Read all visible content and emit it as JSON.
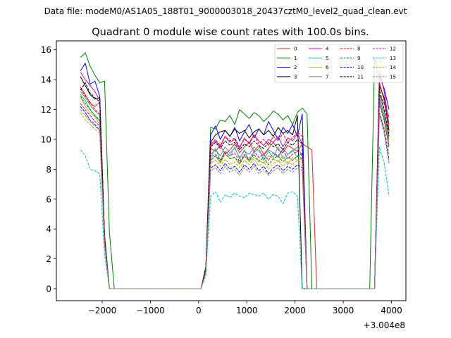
{
  "figure": {
    "suptitle": "Data file: modeM0/AS1A05_188T01_9000003018_20437cztM0_level2_quad_clean.evt"
  },
  "chart_data": {
    "type": "line",
    "title": "Quadrant 0 module wise count rates with 100.0s bins.",
    "xlabel": "",
    "ylabel": "",
    "x_offset_label": "+3.004e8",
    "xlim": [
      -2950,
      4300
    ],
    "ylim": [
      -0.8,
      16.6
    ],
    "xticks": [
      -2000,
      -1000,
      0,
      1000,
      2000,
      3000,
      4000
    ],
    "xtick_labels": [
      "−2000",
      "−1000",
      "0",
      "1000",
      "2000",
      "3000",
      "4000"
    ],
    "yticks": [
      0,
      2,
      4,
      6,
      8,
      10,
      12,
      14,
      16
    ],
    "ytick_labels": [
      "0",
      "2",
      "4",
      "6",
      "8",
      "10",
      "12",
      "14",
      "16"
    ],
    "grid": false,
    "legend_position": "top-right",
    "legend_columns": 4,
    "x_segments": [
      [
        -2450,
        -2350,
        -2250,
        -2150,
        -2050,
        -1950,
        -1850,
        -1750,
        -1650,
        -1550,
        -1450,
        -1350,
        -1250,
        -1150,
        -1050,
        -950,
        -850,
        -750,
        -650,
        -550,
        -450,
        -350,
        -250,
        -150,
        -50,
        50,
        150,
        250,
        350,
        450,
        550,
        650,
        750,
        850,
        950,
        1050,
        1150,
        1250,
        1350,
        1450,
        1550,
        1650,
        1750,
        1850,
        1950,
        2050,
        2150,
        2250,
        2350,
        2450,
        2550,
        2650,
        2750,
        2850,
        2950,
        3050,
        3150,
        3250,
        3350,
        3450,
        3550,
        3650,
        3750,
        3850,
        3950
      ]
    ],
    "series": [
      {
        "name": "0",
        "color": "#d62728",
        "linestyle": "solid",
        "values": [
          13.5,
          13.0,
          12.4,
          12.2,
          12.5,
          3.5,
          0,
          0,
          0,
          0,
          0,
          0,
          0,
          0,
          0,
          0,
          0,
          0,
          0,
          0,
          0,
          0,
          0,
          0,
          0,
          0,
          1.3,
          9.4,
          9.2,
          9.6,
          9.0,
          9.3,
          9.7,
          9.1,
          9.5,
          9.8,
          9.2,
          9.6,
          9.0,
          9.4,
          9.8,
          9.3,
          9.1,
          9.6,
          9.4,
          9.2,
          9.7,
          9.5,
          9.3,
          0,
          0,
          0,
          0,
          0,
          0,
          0,
          0,
          0,
          0,
          0,
          0,
          0,
          13.0,
          12.4,
          11.5
        ]
      },
      {
        "name": "1",
        "color": "#008000",
        "linestyle": "solid",
        "values": [
          15.5,
          15.8,
          14.9,
          14.3,
          13.8,
          13.9,
          3.8,
          0,
          0,
          0,
          0,
          0,
          0,
          0,
          0,
          0,
          0,
          0,
          0,
          0,
          0,
          0,
          0,
          0,
          0,
          0,
          1.5,
          10.8,
          10.7,
          11.3,
          11.2,
          11.6,
          11.0,
          12.0,
          11.7,
          11.4,
          11.8,
          11.6,
          11.2,
          11.5,
          11.9,
          11.7,
          11.3,
          11.6,
          11.0,
          11.8,
          12.1,
          11.7,
          0,
          0,
          0,
          0,
          0,
          0,
          0,
          0,
          0,
          0,
          0,
          0,
          0,
          15.5,
          13.8,
          12.6
        ]
      },
      {
        "name": "2",
        "color": "#0000ff",
        "linestyle": "solid",
        "values": [
          14.6,
          15.1,
          13.7,
          13.9,
          12.9,
          3.6,
          0,
          0,
          0,
          0,
          0,
          0,
          0,
          0,
          0,
          0,
          0,
          0,
          0,
          0,
          0,
          0,
          0,
          0,
          0,
          0,
          1.4,
          10.3,
          10.9,
          10.0,
          10.6,
          10.2,
          10.8,
          9.9,
          10.5,
          11.0,
          10.1,
          10.7,
          10.3,
          11.2,
          10.6,
          10.0,
          10.8,
          10.4,
          11.0,
          10.2,
          11.7,
          0,
          0,
          0,
          0,
          0,
          0,
          0,
          0,
          0,
          0,
          0,
          0,
          0,
          0,
          0,
          14.2,
          13.4,
          12.0
        ]
      },
      {
        "name": "3",
        "color": "#000000",
        "linestyle": "solid",
        "values": [
          14.2,
          13.6,
          13.0,
          12.7,
          12.8,
          3.5,
          0,
          0,
          0,
          0,
          0,
          0,
          0,
          0,
          0,
          0,
          0,
          0,
          0,
          0,
          0,
          0,
          0,
          0,
          0,
          0,
          1.4,
          9.8,
          10.3,
          10.5,
          10.6,
          10.2,
          10.7,
          10.4,
          10.6,
          10.1,
          10.5,
          10.7,
          10.3,
          10.6,
          10.2,
          10.8,
          10.4,
          10.6,
          10.3,
          11.6,
          0,
          0,
          0,
          0,
          0,
          0,
          0,
          0,
          0,
          0,
          0,
          0,
          0,
          0,
          0,
          0,
          13.6,
          12.8,
          10.6
        ]
      },
      {
        "name": "4",
        "color": "#cc00cc",
        "linestyle": "solid",
        "values": [
          14.5,
          14.0,
          13.6,
          13.2,
          12.6,
          3.4,
          0,
          0,
          0,
          0,
          0,
          0,
          0,
          0,
          0,
          0,
          0,
          0,
          0,
          0,
          0,
          0,
          0,
          0,
          0,
          0,
          1.3,
          9.6,
          9.9,
          9.5,
          10.2,
          9.8,
          10.0,
          9.4,
          10.1,
          9.7,
          10.3,
          9.9,
          9.6,
          10.0,
          9.8,
          10.2,
          9.5,
          10.1,
          9.9,
          10.4,
          9.7,
          0,
          0,
          0,
          0,
          0,
          0,
          0,
          0,
          0,
          0,
          0,
          0,
          0,
          0,
          0,
          14.6,
          13.2,
          11.0
        ]
      },
      {
        "name": "5",
        "color": "#1abc9c",
        "linestyle": "solid",
        "values": [
          13.0,
          12.6,
          12.0,
          11.6,
          11.2,
          3.2,
          0,
          0,
          0,
          0,
          0,
          0,
          0,
          0,
          0,
          0,
          0,
          0,
          0,
          0,
          0,
          0,
          0,
          0,
          0,
          0,
          1.2,
          8.8,
          9.4,
          8.6,
          9.2,
          8.9,
          9.5,
          8.7,
          9.3,
          8.5,
          9.1,
          9.4,
          8.6,
          9.2,
          8.8,
          9.5,
          8.7,
          9.0,
          9.3,
          8.8,
          9.1,
          0,
          0,
          0,
          0,
          0,
          0,
          0,
          0,
          0,
          0,
          0,
          0,
          0,
          0,
          0,
          12.8,
          11.6,
          10.0
        ]
      },
      {
        "name": "6",
        "color": "#bcbd22",
        "linestyle": "solid",
        "values": [
          12.8,
          12.2,
          11.8,
          11.5,
          11.0,
          3.1,
          0,
          0,
          0,
          0,
          0,
          0,
          0,
          0,
          0,
          0,
          0,
          0,
          0,
          0,
          0,
          0,
          0,
          0,
          0,
          0,
          1.2,
          8.6,
          8.9,
          8.4,
          9.0,
          8.7,
          8.8,
          8.3,
          8.9,
          8.5,
          8.8,
          8.6,
          8.4,
          8.9,
          8.7,
          8.5,
          8.9,
          8.3,
          8.8,
          8.6,
          8.7,
          0,
          0,
          0,
          0,
          0,
          0,
          0,
          0,
          0,
          0,
          0,
          0,
          0,
          0,
          0,
          12.6,
          11.4,
          9.8
        ]
      },
      {
        "name": "7",
        "color": "#808080",
        "linestyle": "solid",
        "values": [
          13.2,
          12.8,
          12.3,
          11.9,
          11.6,
          3.3,
          0,
          0,
          0,
          0,
          0,
          0,
          0,
          0,
          0,
          0,
          0,
          0,
          0,
          0,
          0,
          0,
          0,
          0,
          0,
          0,
          1.2,
          9.0,
          9.3,
          8.9,
          9.5,
          9.1,
          9.4,
          8.8,
          9.2,
          9.0,
          9.5,
          9.2,
          8.9,
          9.3,
          9.1,
          8.8,
          9.4,
          9.0,
          9.2,
          9.5,
          8.9,
          0,
          0,
          0,
          0,
          0,
          0,
          0,
          0,
          0,
          0,
          0,
          0,
          0,
          0,
          0,
          13.0,
          11.9,
          10.2
        ]
      },
      {
        "name": "8",
        "color": "#ff0000",
        "linestyle": "dashed",
        "values": [
          13.4,
          12.9,
          12.5,
          12.0,
          11.7,
          3.3,
          0,
          0,
          0,
          0,
          0,
          0,
          0,
          0,
          0,
          0,
          0,
          0,
          0,
          0,
          0,
          0,
          0,
          0,
          0,
          0,
          1.3,
          9.7,
          10.0,
          9.6,
          10.2,
          9.9,
          10.1,
          9.5,
          10.0,
          9.8,
          10.3,
          9.7,
          10.0,
          9.6,
          10.2,
          9.9,
          10.4,
          9.8,
          10.1,
          10.5,
          10.2,
          0,
          0,
          0,
          0,
          0,
          0,
          0,
          0,
          0,
          0,
          0,
          0,
          0,
          0,
          0,
          13.8,
          12.6,
          10.4
        ]
      },
      {
        "name": "9",
        "color": "#008000",
        "linestyle": "dashed",
        "values": [
          12.9,
          12.4,
          12.0,
          11.6,
          11.3,
          3.2,
          0,
          0,
          0,
          0,
          0,
          0,
          0,
          0,
          0,
          0,
          0,
          0,
          0,
          0,
          0,
          0,
          0,
          0,
          0,
          0,
          1.2,
          8.6,
          8.9,
          8.5,
          9.1,
          8.7,
          8.8,
          8.4,
          8.9,
          8.6,
          9.0,
          8.5,
          8.8,
          8.3,
          8.7,
          8.9,
          8.5,
          8.8,
          8.6,
          8.9,
          8.7,
          0,
          0,
          0,
          0,
          0,
          0,
          0,
          0,
          0,
          0,
          0,
          0,
          0,
          0,
          0,
          12.4,
          11.2,
          9.6
        ]
      },
      {
        "name": "10",
        "color": "#0000ff",
        "linestyle": "dashed",
        "values": [
          12.2,
          11.8,
          11.3,
          11.0,
          10.6,
          3.0,
          0,
          0,
          0,
          0,
          0,
          0,
          0,
          0,
          0,
          0,
          0,
          0,
          0,
          0,
          0,
          0,
          0,
          0,
          0,
          0,
          1.1,
          8.1,
          8.3,
          7.9,
          8.4,
          8.0,
          8.2,
          7.8,
          8.3,
          8.0,
          8.4,
          7.9,
          8.2,
          7.7,
          8.1,
          8.3,
          7.9,
          8.2,
          8.0,
          8.3,
          8.1,
          0,
          0,
          0,
          0,
          0,
          0,
          0,
          0,
          0,
          0,
          0,
          0,
          0,
          0,
          0,
          11.8,
          10.6,
          8.6
        ]
      },
      {
        "name": "11",
        "color": "#000000",
        "linestyle": "dashed",
        "values": [
          13.3,
          13.8,
          13.1,
          12.8,
          12.5,
          3.4,
          0,
          0,
          0,
          0,
          0,
          0,
          0,
          0,
          0,
          0,
          0,
          0,
          0,
          0,
          0,
          0,
          0,
          0,
          0,
          0,
          1.3,
          9.5,
          9.8,
          9.4,
          9.9,
          9.6,
          9.8,
          9.3,
          9.7,
          9.5,
          9.9,
          9.6,
          9.4,
          9.8,
          9.5,
          9.7,
          9.3,
          9.8,
          9.6,
          10.0,
          9.7,
          0,
          0,
          0,
          0,
          0,
          0,
          0,
          0,
          0,
          0,
          0,
          0,
          0,
          0,
          0,
          13.4,
          12.0,
          10.2
        ]
      },
      {
        "name": "12",
        "color": "#cc00cc",
        "linestyle": "dashed",
        "values": [
          12.4,
          12.0,
          11.6,
          11.2,
          10.9,
          3.1,
          0,
          0,
          0,
          0,
          0,
          0,
          0,
          0,
          0,
          0,
          0,
          0,
          0,
          0,
          0,
          0,
          0,
          0,
          0,
          0,
          1.2,
          8.8,
          9.0,
          8.6,
          9.2,
          8.9,
          9.1,
          8.5,
          9.0,
          8.7,
          9.2,
          8.8,
          9.0,
          8.6,
          9.1,
          8.9,
          9.3,
          8.7,
          9.0,
          9.2,
          8.9,
          0,
          0,
          0,
          0,
          0,
          0,
          0,
          0,
          0,
          0,
          0,
          0,
          0,
          0,
          0,
          12.6,
          11.4,
          9.4
        ]
      },
      {
        "name": "13",
        "color": "#00bfbf",
        "linestyle": "dashed",
        "values": [
          9.3,
          8.9,
          8.0,
          7.9,
          7.7,
          2.3,
          0,
          0,
          0,
          0,
          0,
          0,
          0,
          0,
          0,
          0,
          0,
          0,
          0,
          0,
          0,
          0,
          0,
          0,
          0,
          0,
          0.9,
          6.2,
          6.5,
          5.8,
          6.3,
          6.1,
          6.4,
          6.2,
          6.1,
          6.4,
          6.3,
          6.2,
          6.4,
          6.0,
          6.3,
          6.2,
          5.7,
          6.4,
          6.5,
          6.2,
          0,
          0,
          0,
          0,
          0,
          0,
          0,
          0,
          0,
          0,
          0,
          0,
          0,
          0,
          0,
          0,
          9.5,
          8.4,
          6.2
        ]
      },
      {
        "name": "14",
        "color": "#c8a800",
        "linestyle": "dashed",
        "values": [
          11.8,
          11.3,
          11.0,
          10.7,
          10.4,
          2.9,
          0,
          0,
          0,
          0,
          0,
          0,
          0,
          0,
          0,
          0,
          0,
          0,
          0,
          0,
          0,
          0,
          0,
          0,
          0,
          0,
          1.1,
          8.4,
          8.6,
          8.2,
          8.7,
          8.3,
          8.5,
          8.1,
          8.6,
          8.3,
          8.7,
          8.2,
          8.5,
          8.0,
          8.4,
          8.6,
          8.2,
          8.5,
          8.3,
          8.6,
          8.4,
          0,
          0,
          0,
          0,
          0,
          0,
          0,
          0,
          0,
          0,
          0,
          0,
          0,
          0,
          0,
          11.9,
          10.8,
          9.0
        ]
      },
      {
        "name": "15",
        "color": "#808080",
        "linestyle": "dashed",
        "values": [
          12.0,
          11.6,
          11.2,
          10.9,
          10.6,
          3.0,
          0,
          0,
          0,
          0,
          0,
          0,
          0,
          0,
          0,
          0,
          0,
          0,
          0,
          0,
          0,
          0,
          0,
          0,
          0,
          0,
          1.1,
          7.9,
          8.1,
          7.7,
          8.2,
          7.8,
          8.0,
          7.6,
          8.1,
          7.8,
          8.2,
          7.7,
          8.0,
          7.6,
          7.9,
          8.1,
          7.7,
          8.0,
          7.8,
          8.1,
          7.9,
          0,
          0,
          0,
          0,
          0,
          0,
          0,
          0,
          0,
          0,
          0,
          0,
          0,
          0,
          0,
          11.6,
          10.4,
          8.4
        ]
      }
    ]
  }
}
